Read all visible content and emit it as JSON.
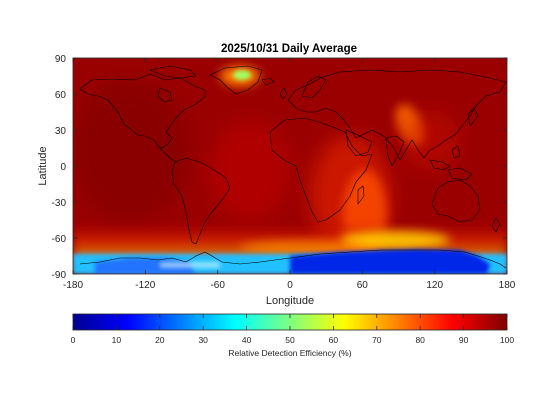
{
  "title": "2025/10/31 Daily Average",
  "xlabel": "Longitude",
  "ylabel": "Latitude",
  "x_ticks": [
    "-180",
    "-120",
    "-60",
    "0",
    "60",
    "120",
    "180"
  ],
  "y_ticks": [
    "90",
    "60",
    "30",
    "0",
    "-30",
    "-60",
    "-90"
  ],
  "colorbar": {
    "label": "Relative Detection Efficiency (%)",
    "ticks": [
      "0",
      "10",
      "20",
      "30",
      "40",
      "50",
      "60",
      "70",
      "80",
      "90",
      "100"
    ],
    "range": [
      0,
      100
    ],
    "colormap": "jet",
    "orientation": "horizontal"
  },
  "map": {
    "projection": "equirectangular",
    "lon_range": [
      -180,
      180
    ],
    "lat_range": [
      -90,
      90
    ],
    "coastlines": true,
    "background_value": 100,
    "features": [
      {
        "name": "greenland-low",
        "lon": -30,
        "lat": 72,
        "value": 60
      },
      {
        "name": "east-africa-indian-ocean",
        "lon": 60,
        "lat": -5,
        "value": 88
      },
      {
        "name": "arabian-sea",
        "lon": 68,
        "lat": 18,
        "value": 82
      },
      {
        "name": "southern-ocean",
        "lon": 80,
        "lat": -62,
        "value": 75
      },
      {
        "name": "antarctica-east",
        "lon": 100,
        "lat": -80,
        "value": 8
      },
      {
        "name": "antarctica-west",
        "lon": -110,
        "lat": -84,
        "value": 35
      }
    ]
  }
}
